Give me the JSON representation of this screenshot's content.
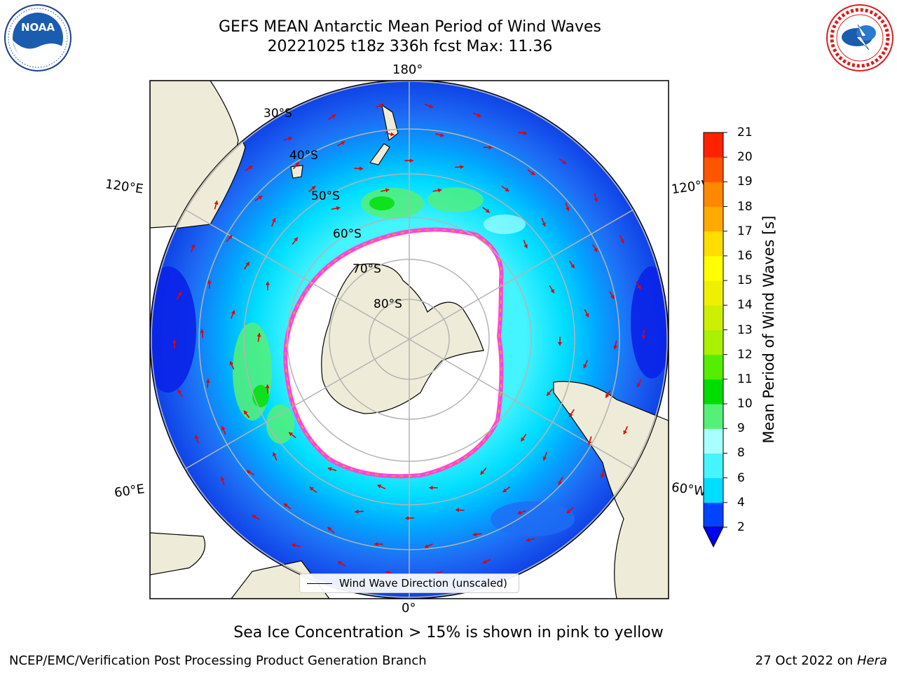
{
  "title": {
    "line1": "GEFS MEAN Antarctic Mean Period of Wind Waves",
    "line2": "20221025 t18z 336h fcst   Max: 11.36"
  },
  "logos": {
    "left": {
      "name": "noaa-logo",
      "text": "NOAA",
      "ring_text": "NATIONAL OCEANIC AND ATMOSPHERIC ADMINISTRATION · U.S. DEPARTMENT OF COMMERCE"
    },
    "right": {
      "name": "nws-logo",
      "ring_text": "NATIONAL WEATHER SERVICE"
    }
  },
  "map": {
    "projection": "south-polar-stereographic",
    "longitude_labels": {
      "top": "180°",
      "bottom": "0°",
      "upper_left": "120°E",
      "upper_right": "120°W",
      "lower_left": "60°E",
      "lower_right": "60°W"
    },
    "latitude_labels": [
      "30°S",
      "40°S",
      "50°S",
      "60°S",
      "70°S",
      "80°S"
    ],
    "colors": {
      "land": "#eeecd8",
      "sea_ice": "#ffffff",
      "ice_edge": "#ff44dd",
      "arrow": "#e40000"
    }
  },
  "colorbar": {
    "label": "Mean Period of Wind Waves [s]",
    "ticks": [
      "2",
      "4",
      "6",
      "8",
      "9",
      "10",
      "11",
      "12",
      "13",
      "14",
      "15",
      "16",
      "17",
      "18",
      "19",
      "20",
      "21"
    ],
    "colors": [
      "#0044ff",
      "#00ddff",
      "#44f4ff",
      "#a8ffff",
      "#55f077",
      "#00dd00",
      "#55ee00",
      "#aaf000",
      "#ccf000",
      "#eef000",
      "#ffff00",
      "#ffdd00",
      "#ffaa00",
      "#ff8800",
      "#ff5500",
      "#ff2200"
    ],
    "underflow_color": "#0000ee"
  },
  "legend": {
    "label": "Wind Wave Direction (unscaled)"
  },
  "caption": "Sea Ice Concentration > 15% is shown in pink to yellow",
  "footer": {
    "left": "NCEP/EMC/Verification Post Processing Product Generation Branch",
    "date": "27 Oct 2022 on ",
    "host": "Hera"
  }
}
